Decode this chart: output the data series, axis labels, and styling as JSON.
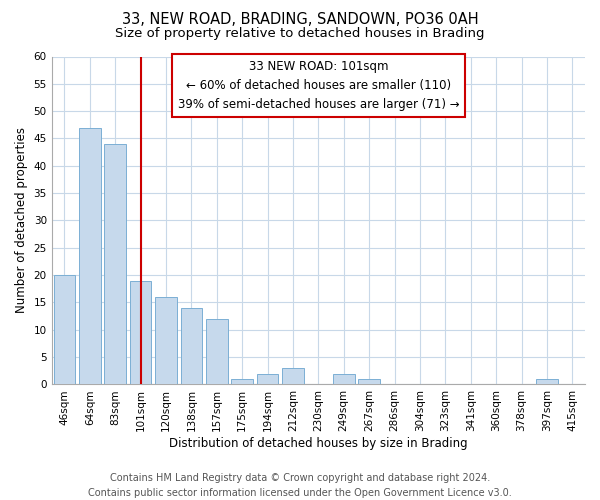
{
  "title": "33, NEW ROAD, BRADING, SANDOWN, PO36 0AH",
  "subtitle": "Size of property relative to detached houses in Brading",
  "xlabel": "Distribution of detached houses by size in Brading",
  "ylabel": "Number of detached properties",
  "bar_labels": [
    "46sqm",
    "64sqm",
    "83sqm",
    "101sqm",
    "120sqm",
    "138sqm",
    "157sqm",
    "175sqm",
    "194sqm",
    "212sqm",
    "230sqm",
    "249sqm",
    "267sqm",
    "286sqm",
    "304sqm",
    "323sqm",
    "341sqm",
    "360sqm",
    "378sqm",
    "397sqm",
    "415sqm"
  ],
  "bar_values": [
    20,
    47,
    44,
    19,
    16,
    14,
    12,
    1,
    2,
    3,
    0,
    2,
    1,
    0,
    0,
    0,
    0,
    0,
    0,
    1,
    0
  ],
  "bar_color": "#c6d9ec",
  "bar_edge_color": "#7bafd4",
  "property_line_x": 3,
  "annotation_title": "33 NEW ROAD: 101sqm",
  "annotation_line1": "← 60% of detached houses are smaller (110)",
  "annotation_line2": "39% of semi-detached houses are larger (71) →",
  "vline_color": "#cc0000",
  "ylim": [
    0,
    60
  ],
  "yticks": [
    0,
    5,
    10,
    15,
    20,
    25,
    30,
    35,
    40,
    45,
    50,
    55,
    60
  ],
  "annotation_box_facecolor": "#ffffff",
  "annotation_box_edgecolor": "#cc0000",
  "grid_color": "#c8d8e8",
  "footnote1": "Contains HM Land Registry data © Crown copyright and database right 2024.",
  "footnote2": "Contains public sector information licensed under the Open Government Licence v3.0.",
  "title_fontsize": 10.5,
  "subtitle_fontsize": 9.5,
  "axis_label_fontsize": 8.5,
  "tick_fontsize": 7.5,
  "annotation_fontsize": 8.5,
  "footnote_fontsize": 7
}
